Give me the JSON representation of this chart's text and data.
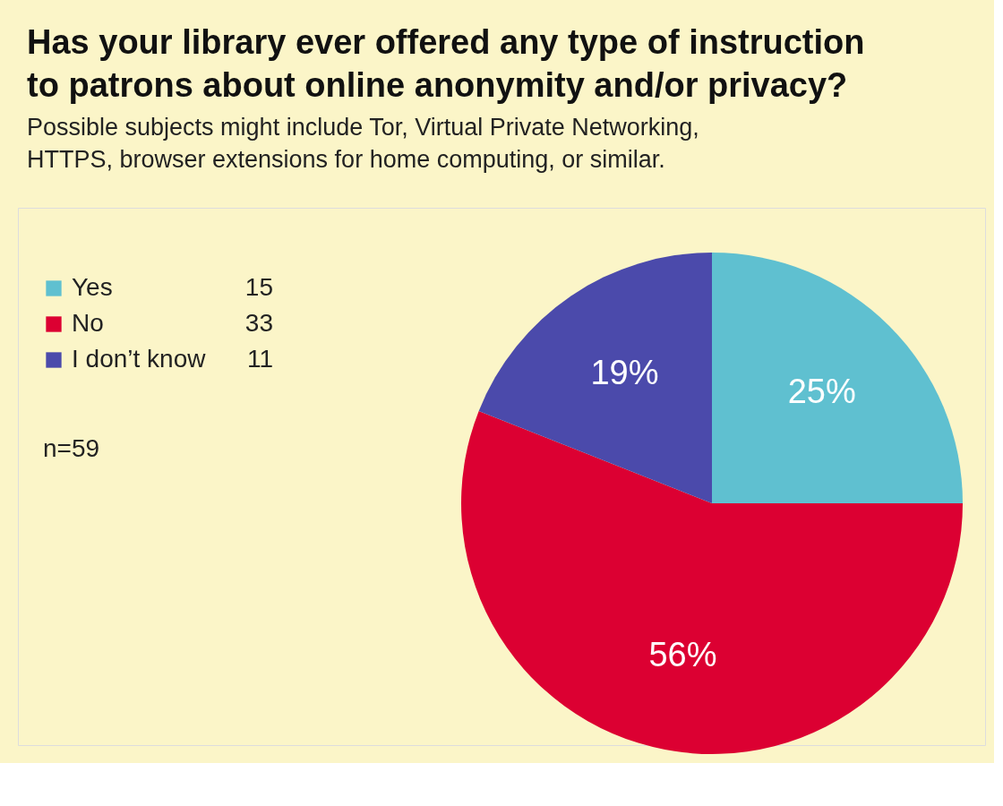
{
  "chart_data": {
    "type": "pie",
    "title": "Has your library ever offered any type of instruction to patrons about online anonymity and/or privacy?",
    "subtitle": "Possible subjects might include Tor, Virtual Private Networking, HTTPS, browser extensions for home computing, or similar.",
    "categories": [
      "Yes",
      "No",
      "I don’t know"
    ],
    "values": [
      25,
      56,
      19
    ],
    "value_labels": [
      "25%",
      "56%",
      "19%"
    ],
    "colors": [
      "#5fc0d0",
      "#dc0032",
      "#4b4aab"
    ],
    "legend": "top left",
    "annotations": [
      "15",
      "33",
      "11",
      "n=59"
    ]
  }
}
